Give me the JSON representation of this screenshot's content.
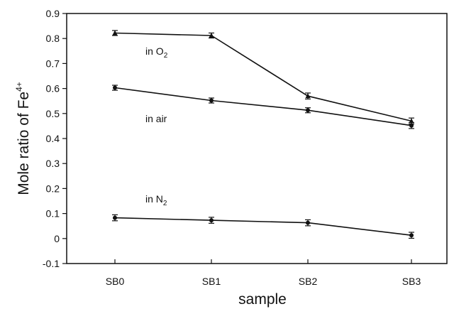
{
  "chart_data": {
    "type": "line",
    "title": "",
    "xlabel": "sample",
    "ylabel": {
      "main": "Mole ratio of  Fe",
      "superscript": "4+"
    },
    "categories": [
      "SB0",
      "SB1",
      "SB2",
      "SB3"
    ],
    "ylim": [
      -0.1,
      0.9
    ],
    "yticks": [
      "-0.1",
      "0",
      "0.1",
      "0.2",
      "0.3",
      "0.4",
      "0.5",
      "0.6",
      "0.7",
      "0.8",
      "0.9"
    ],
    "grid": false,
    "legend": "none",
    "series": [
      {
        "name": "in O2",
        "label_main": "in O",
        "label_sub": "2",
        "marker": "triangle",
        "values": [
          0.822,
          0.812,
          0.57,
          0.47
        ],
        "error": [
          0.01,
          0.01,
          0.012,
          0.012
        ]
      },
      {
        "name": "in air",
        "label_main": "in air",
        "label_sub": "",
        "marker": "circle",
        "values": [
          0.603,
          0.552,
          0.513,
          0.452
        ],
        "error": [
          0.01,
          0.01,
          0.01,
          0.012
        ]
      },
      {
        "name": "in N2",
        "label_main": "in N",
        "label_sub": "2",
        "marker": "circle",
        "values": [
          0.083,
          0.073,
          0.063,
          0.013
        ],
        "error": [
          0.012,
          0.012,
          0.012,
          0.012
        ]
      }
    ]
  }
}
